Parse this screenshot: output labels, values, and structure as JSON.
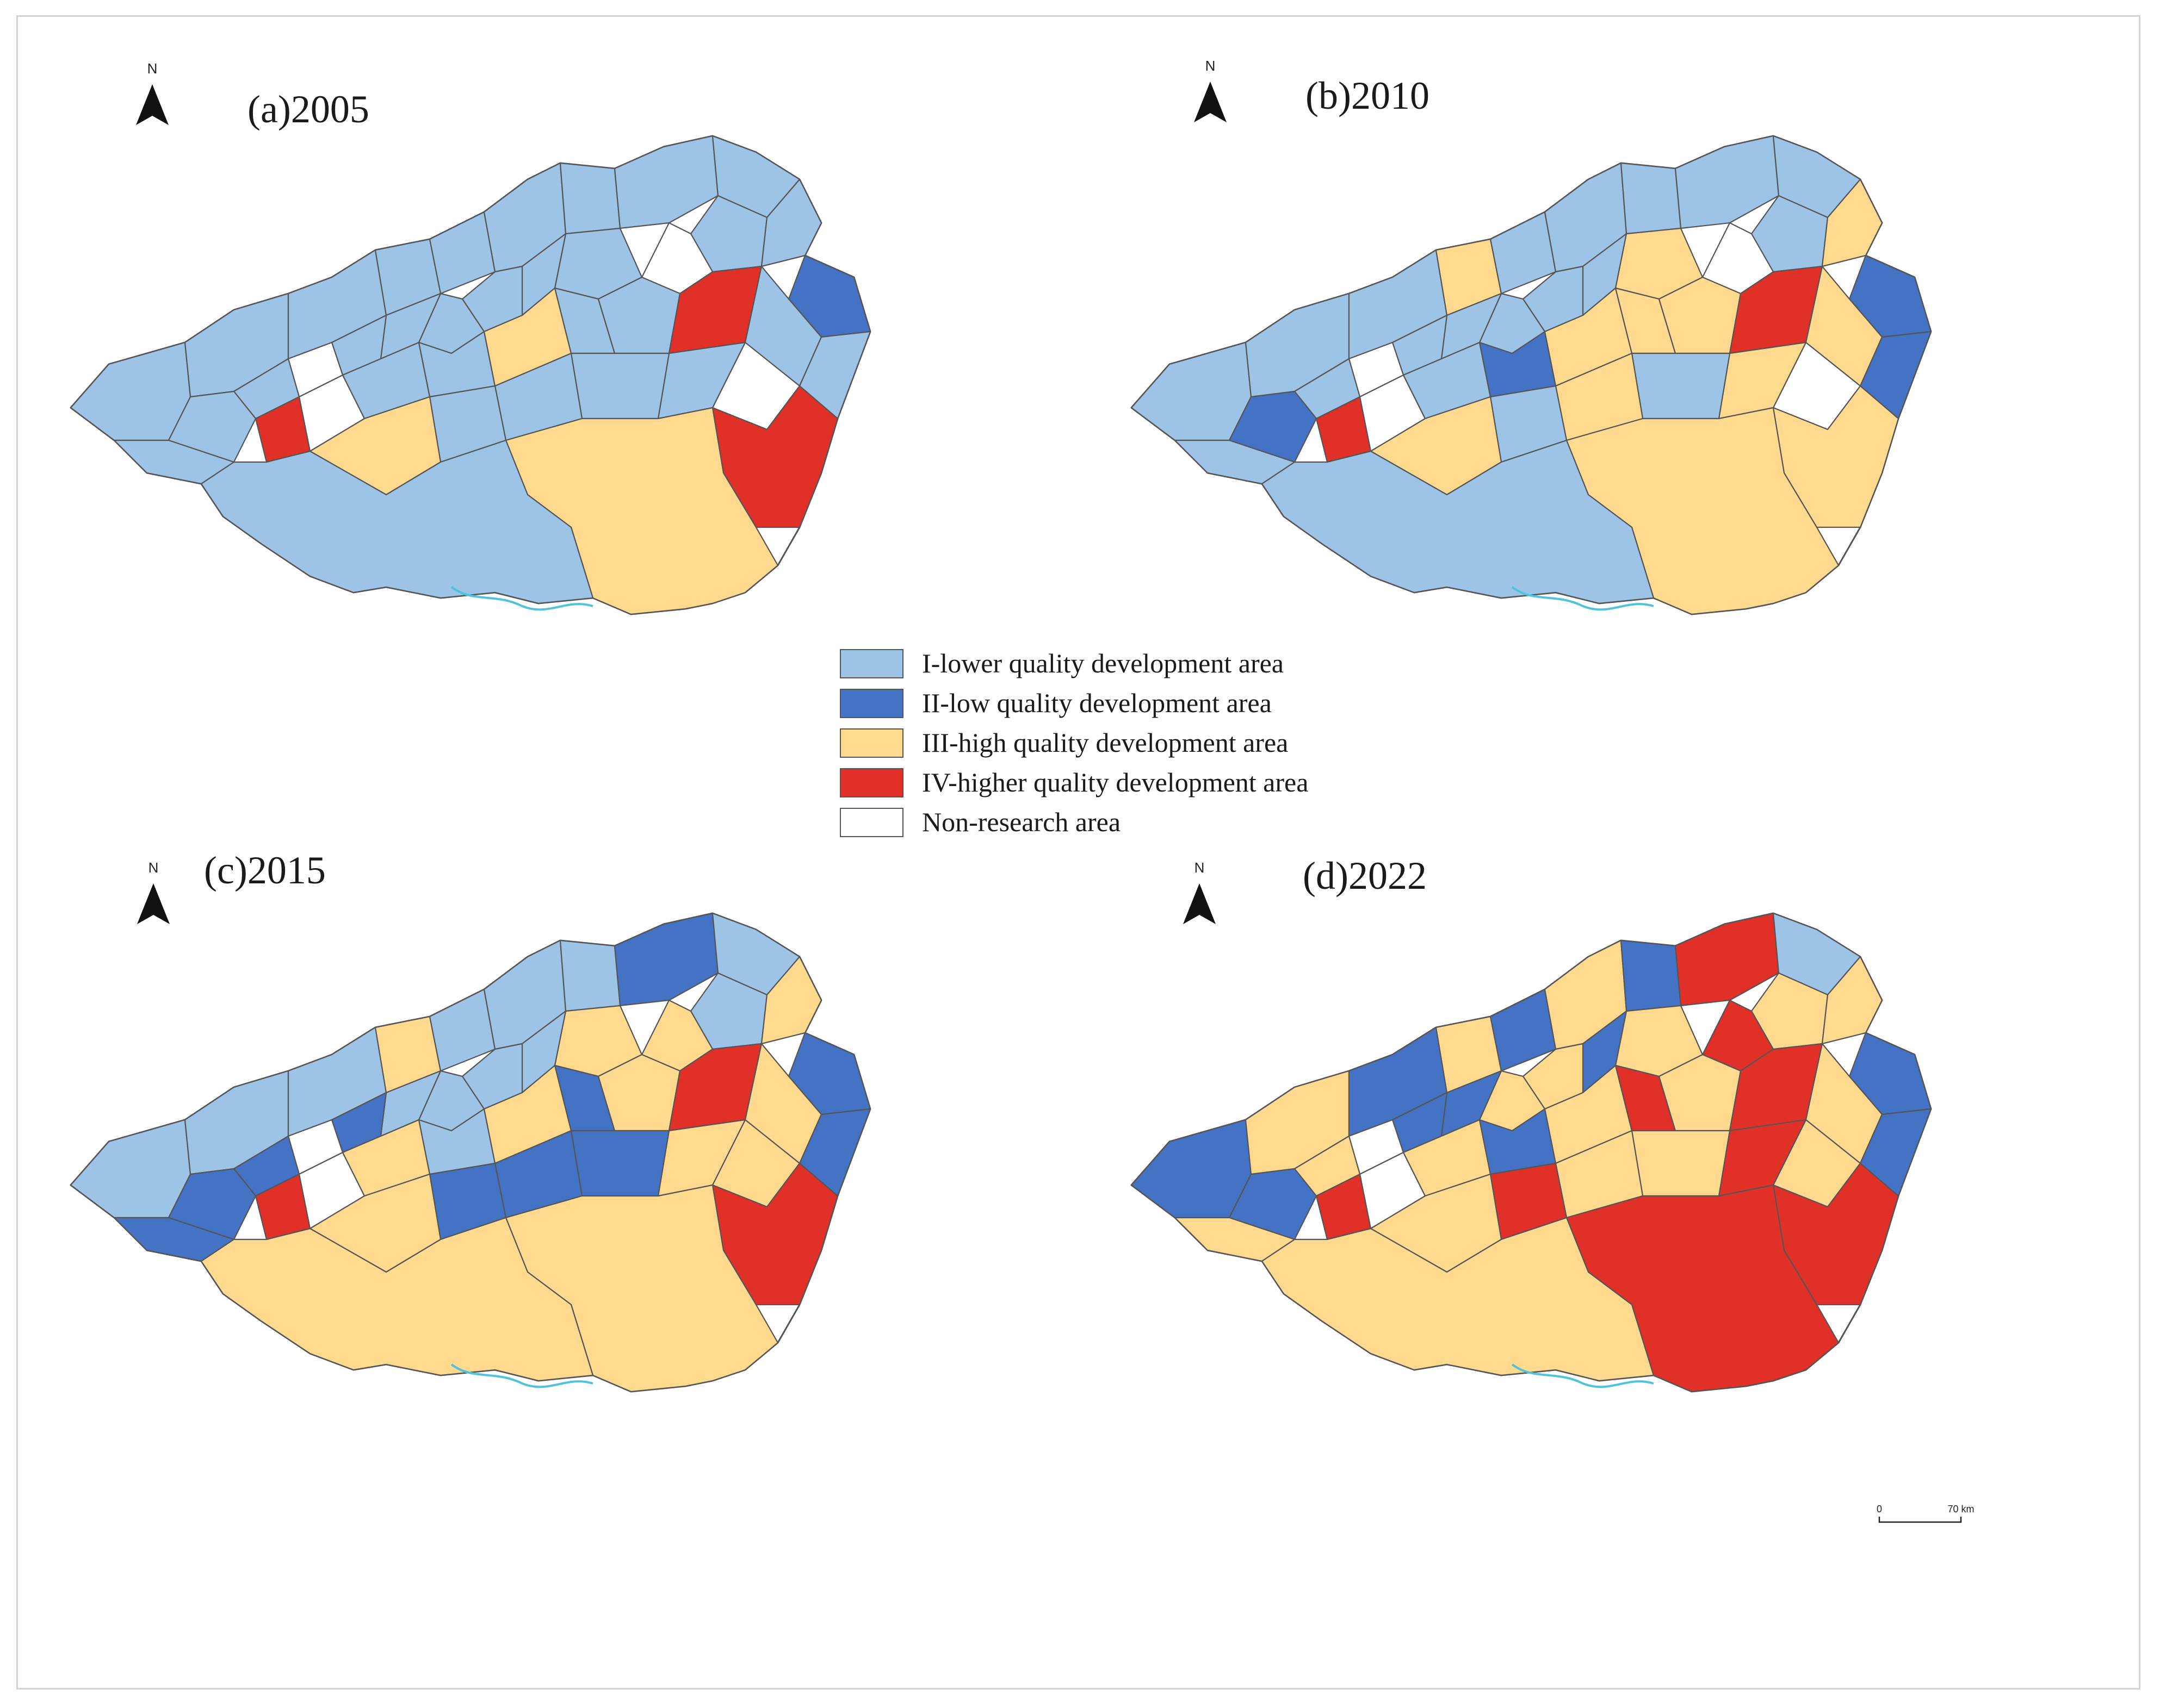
{
  "colors": {
    "lower": "#9dc3e6",
    "low": "#4472c4",
    "high": "#ffd98e",
    "higher": "#e03028",
    "non": "#ffffff",
    "coast": "#4fc3d9"
  },
  "panels": [
    {
      "title": "(a)2005",
      "regions": [
        "lower",
        "lower",
        "lower",
        "lower",
        "lower",
        "lower",
        "lower",
        "lower",
        "lower",
        "lower",
        "lower",
        "low",
        "non",
        "lower",
        "lower",
        "lower",
        "lower",
        "lower",
        "lower",
        "non",
        "lower",
        "higher",
        "non",
        "lower",
        "lower",
        "lower",
        "lower",
        "high",
        "lower",
        "lower",
        "higher",
        "lower",
        "lower",
        "non",
        "lower",
        "lower",
        "lower",
        "lower",
        "high",
        "higher",
        "high",
        "lower"
      ]
    },
    {
      "title": "(b)2010",
      "regions": [
        "lower",
        "lower",
        "lower",
        "high",
        "lower",
        "lower",
        "lower",
        "lower",
        "lower",
        "lower",
        "high",
        "low",
        "non",
        "high",
        "lower",
        "lower",
        "lower",
        "lower",
        "lower",
        "non",
        "lower",
        "higher",
        "non",
        "low",
        "lower",
        "lower",
        "low",
        "high",
        "high",
        "high",
        "higher",
        "high",
        "low",
        "non",
        "high",
        "lower",
        "high",
        "lower",
        "high",
        "high",
        "high",
        "lower"
      ]
    },
    {
      "title": "(c)2015",
      "regions": [
        "lower",
        "lower",
        "lower",
        "high",
        "lower",
        "lower",
        "lower",
        "low",
        "lower",
        "lower",
        "high",
        "low",
        "high",
        "high",
        "lower",
        "lower",
        "lower",
        "lower",
        "low",
        "non",
        "low",
        "higher",
        "non",
        "low",
        "low",
        "high",
        "lower",
        "high",
        "low",
        "high",
        "higher",
        "high",
        "low",
        "high",
        "high",
        "low",
        "low",
        "low",
        "high",
        "higher",
        "high",
        "high"
      ]
    },
    {
      "title": "(d)2022",
      "regions": [
        "low",
        "high",
        "low",
        "high",
        "low",
        "high",
        "low",
        "higher",
        "lower",
        "high",
        "high",
        "low",
        "higher",
        "high",
        "low",
        "high",
        "high",
        "low",
        "low",
        "non",
        "high",
        "higher",
        "non",
        "low",
        "high",
        "high",
        "low",
        "high",
        "higher",
        "high",
        "higher",
        "high",
        "low",
        "high",
        "higher",
        "high",
        "high",
        "higher",
        "high",
        "higher",
        "higher",
        "high"
      ]
    }
  ],
  "legend": [
    {
      "key": "lower",
      "label": "I-lower quality development area"
    },
    {
      "key": "low",
      "label": "II-low quality development area"
    },
    {
      "key": "high",
      "label": "III-high quality development area"
    },
    {
      "key": "higher",
      "label": "IV-higher quality development area"
    },
    {
      "key": "non",
      "label": "Non-research area"
    }
  ],
  "north_label": "N",
  "scale_bar": {
    "start": "0",
    "end": "70 km"
  }
}
